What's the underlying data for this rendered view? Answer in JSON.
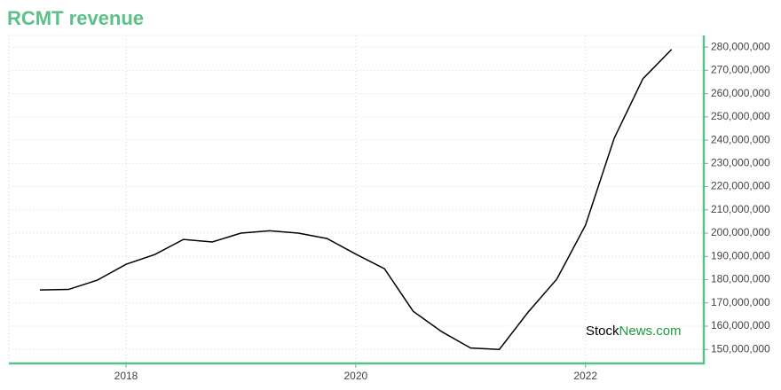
{
  "chart_data": {
    "type": "line",
    "title": "RCMT revenue",
    "watermark": [
      "Stock",
      "News.com"
    ],
    "x": [
      2017.25,
      2017.5,
      2017.75,
      2018,
      2018.25,
      2018.5,
      2018.75,
      2019,
      2019.25,
      2019.5,
      2019.75,
      2020,
      2020.25,
      2020.5,
      2020.75,
      2021,
      2021.25,
      2021.5,
      2021.75,
      2022,
      2022.25,
      2022.5,
      2022.75
    ],
    "series": [
      {
        "color": "#000000",
        "values": [
          175600000,
          175800000,
          179800000,
          186600000,
          190800000,
          197300000,
          196200000,
          200000000,
          201000000,
          200000000,
          197700000,
          191000000,
          184700000,
          166400000,
          157600000,
          150600000,
          150000000,
          166000000,
          180200000,
          203400000,
          240800000,
          266400000,
          279000000
        ]
      }
    ],
    "xlim": [
      2016.98,
      2023.03
    ],
    "xticks": [
      2018,
      2020,
      2022
    ],
    "ylim": [
      144000000,
      285000000
    ],
    "yticks": [
      {
        "value": 150000000,
        "label": "150,000,000"
      },
      {
        "value": 160000000,
        "label": "160,000,000"
      },
      {
        "value": 170000000,
        "label": "170,000,000"
      },
      {
        "value": 180000000,
        "label": "180,000,000"
      },
      {
        "value": 190000000,
        "label": "190,000,000"
      },
      {
        "value": 200000000,
        "label": "200,000,000"
      },
      {
        "value": 210000000,
        "label": "210,000,000"
      },
      {
        "value": 220000000,
        "label": "220,000,000"
      },
      {
        "value": 230000000,
        "label": "230,000,000"
      },
      {
        "value": 240000000,
        "label": "240,000,000"
      },
      {
        "value": 250000000,
        "label": "250,000,000"
      },
      {
        "value": 260000000,
        "label": "260,000,000"
      },
      {
        "value": 270000000,
        "label": "270,000,000"
      },
      {
        "value": 280000000,
        "label": "280,000,000"
      }
    ],
    "grid": true,
    "axis_color": "#5cc08a"
  }
}
